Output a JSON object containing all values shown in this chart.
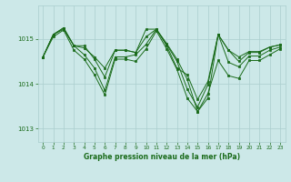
{
  "title": "Graphe pression niveau de la mer (hPa)",
  "background_color": "#cce8e8",
  "line_color": "#1a6b1a",
  "marker_color": "#1a6b1a",
  "grid_color": "#aacece",
  "tick_color": "#1a6b1a",
  "ylim": [
    1012.7,
    1015.75
  ],
  "yticks": [
    1013,
    1014,
    1015
  ],
  "xlim": [
    -0.5,
    23.5
  ],
  "xticks": [
    0,
    1,
    2,
    3,
    4,
    5,
    6,
    7,
    8,
    9,
    10,
    11,
    12,
    13,
    14,
    15,
    16,
    17,
    18,
    19,
    20,
    21,
    22,
    23
  ],
  "series": [
    [
      1014.6,
      1015.1,
      1015.22,
      1014.85,
      1014.8,
      1014.6,
      1014.35,
      1014.75,
      1014.75,
      1014.7,
      1015.22,
      1015.22,
      1014.85,
      1014.35,
      1014.2,
      1013.65,
      1014.05,
      1015.1,
      1014.75,
      1014.6,
      1014.72,
      1014.72,
      1014.82,
      1014.87
    ],
    [
      1014.6,
      1015.1,
      1015.25,
      1014.85,
      1014.85,
      1014.55,
      1014.15,
      1014.75,
      1014.75,
      1014.7,
      1015.05,
      1015.22,
      1014.9,
      1014.55,
      1014.1,
      1013.38,
      1013.68,
      1015.1,
      1014.75,
      1014.5,
      1014.7,
      1014.7,
      1014.82,
      1014.87
    ],
    [
      1014.6,
      1015.1,
      1015.25,
      1014.85,
      1014.65,
      1014.35,
      1013.85,
      1014.6,
      1014.6,
      1014.65,
      1014.88,
      1015.22,
      1014.88,
      1014.5,
      1013.88,
      1013.48,
      1013.98,
      1015.1,
      1014.48,
      1014.38,
      1014.62,
      1014.62,
      1014.75,
      1014.82
    ],
    [
      1014.6,
      1015.05,
      1015.2,
      1014.75,
      1014.55,
      1014.2,
      1013.75,
      1014.55,
      1014.55,
      1014.5,
      1014.78,
      1015.18,
      1014.78,
      1014.32,
      1013.68,
      1013.38,
      1013.78,
      1014.52,
      1014.18,
      1014.12,
      1014.52,
      1014.52,
      1014.65,
      1014.78
    ]
  ]
}
